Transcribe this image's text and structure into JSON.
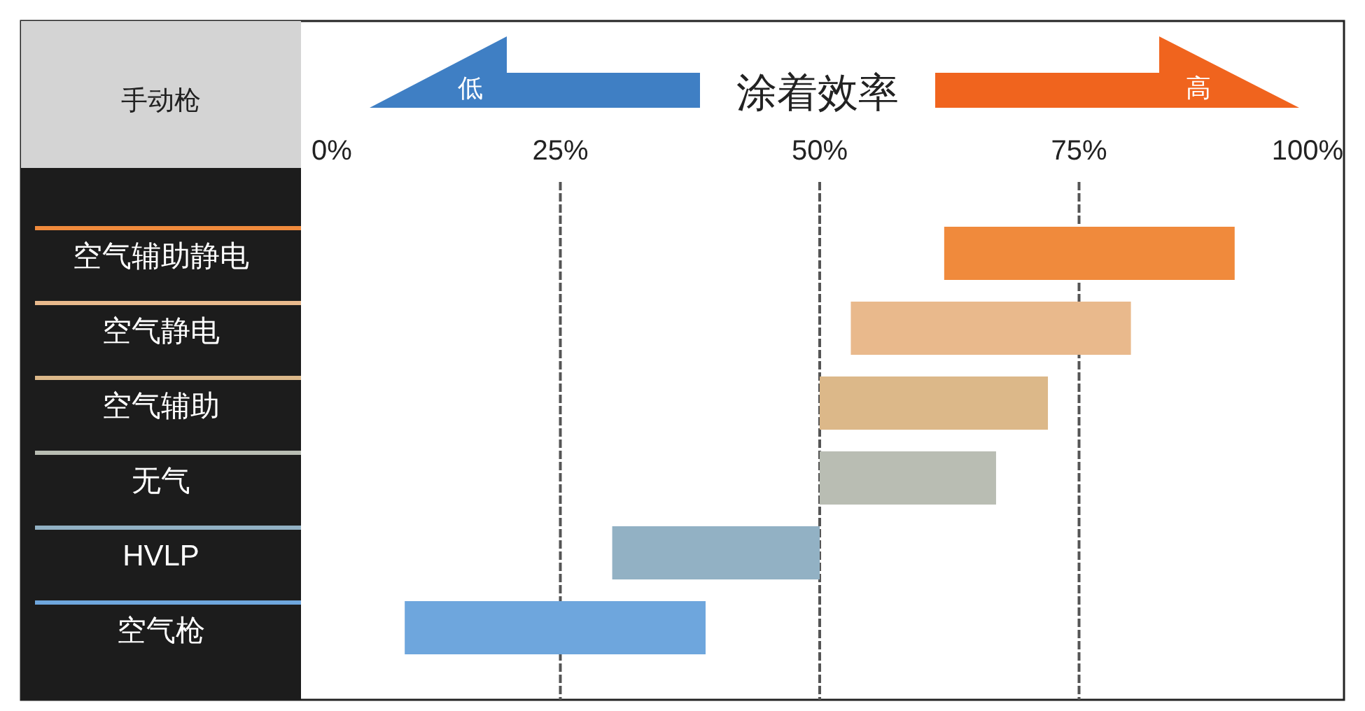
{
  "chart_data": {
    "type": "bar",
    "orientation": "horizontal",
    "title": "涂着效率",
    "ylabel": "手动枪",
    "annotations": [
      "低",
      "高"
    ],
    "categories": [
      "空气辅助静电",
      "空气静电",
      "空气辅助",
      "无气",
      "HVLP",
      "空气枪"
    ],
    "base": [
      62,
      53,
      50,
      50,
      30,
      10
    ],
    "values": [
      28,
      27,
      22,
      17,
      20,
      29
    ],
    "colors": [
      "#f08a3c",
      "#e9b98c",
      "#dcb889",
      "#b9bdb3",
      "#92b1c4",
      "#6ea6dd"
    ],
    "xlim": [
      0,
      100
    ],
    "xticks": [
      {
        "value": 0,
        "label": "0%"
      },
      {
        "value": 25,
        "label": "25%"
      },
      {
        "value": 50,
        "label": "50%"
      },
      {
        "value": 75,
        "label": "75%"
      },
      {
        "value": 100,
        "label": "100%"
      }
    ],
    "grid": "x"
  }
}
